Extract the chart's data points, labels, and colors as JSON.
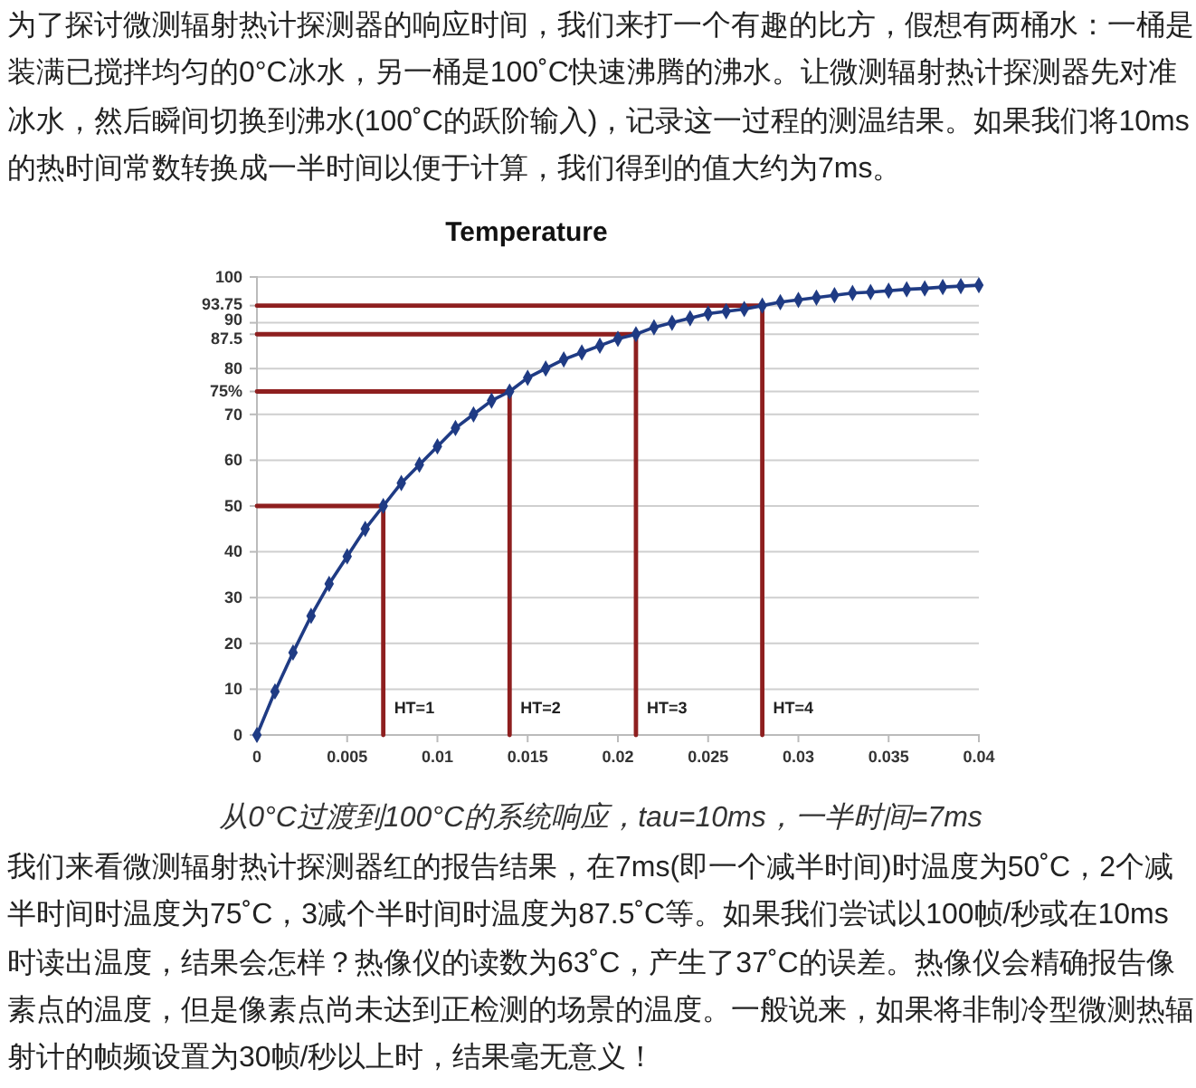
{
  "chart_data": {
    "type": "line",
    "title": "Temperature",
    "x": [
      0,
      0.001,
      0.002,
      0.003,
      0.004,
      0.005,
      0.006,
      0.007,
      0.008,
      0.009,
      0.01,
      0.011,
      0.012,
      0.013,
      0.014,
      0.015,
      0.016,
      0.017,
      0.018,
      0.019,
      0.02,
      0.021,
      0.022,
      0.023,
      0.024,
      0.025,
      0.026,
      0.027,
      0.028,
      0.029,
      0.03,
      0.031,
      0.032,
      0.033,
      0.034,
      0.035,
      0.036,
      0.037,
      0.038,
      0.039,
      0.04
    ],
    "series": [
      {
        "color": "#8e1f1f",
        "marker": "none",
        "x": [
          0,
          0.007,
          0.007
        ],
        "values": [
          50,
          50,
          0
        ]
      },
      {
        "color": "#8e1f1f",
        "marker": "none",
        "x": [
          0,
          0.014,
          0.014
        ],
        "values": [
          75,
          75,
          0
        ]
      },
      {
        "color": "#8e1f1f",
        "marker": "none",
        "x": [
          0,
          0.021,
          0.021
        ],
        "values": [
          87.5,
          87.5,
          0
        ]
      },
      {
        "color": "#8e1f1f",
        "marker": "none",
        "x": [
          0,
          0.028,
          0.028
        ],
        "values": [
          93.75,
          93.75,
          0
        ]
      },
      {
        "color": "#1f3b84",
        "values": [
          0,
          9.5,
          18,
          26,
          33,
          39,
          45,
          50,
          55,
          59,
          63,
          67,
          70,
          73,
          75,
          78,
          80,
          82,
          83.5,
          85,
          86.5,
          87.5,
          89,
          90,
          91,
          92,
          92.5,
          93,
          93.75,
          94.5,
          95,
          95.5,
          96,
          96.5,
          96.7,
          97,
          97.3,
          97.5,
          97.8,
          98,
          98.2
        ]
      }
    ],
    "xlim": [
      0,
      0.04
    ],
    "xticks": [
      0,
      0.005,
      0.01,
      0.015,
      0.02,
      0.025,
      0.03,
      0.035,
      0.04
    ],
    "ylim": [
      0,
      100
    ],
    "yticks": [
      0,
      10,
      20,
      30,
      40,
      50,
      60,
      70,
      {
        "value": 75,
        "label": "75%"
      },
      80,
      {
        "value": 87.5,
        "label": "87.5"
      },
      90,
      {
        "value": 93.75,
        "label": "93.75"
      },
      100
    ],
    "grid": "y",
    "marker": "diamond",
    "line_style": "solid",
    "annotations": [
      "为了探讨微测辐射热计探测器的响应时间，我们来打一个有趣的比方，假想有两桶水：一桶是装满已搅拌均匀的0°C冰水，另一桶是100˚C快速沸腾的沸水。让微测辐射热计探测器先对准冰水，然后瞬间切换到沸水(100˚C的跃阶输入)，记录这一过程的测温结果。如果我们将10ms的热时间常数转换成一半时间以便于计算，我们得到的值大约为7ms。",
      {
        "text": "HT=1",
        "x": 0.007,
        "y": 6
      },
      {
        "text": "HT=2",
        "x": 0.014,
        "y": 6
      },
      {
        "text": "HT=3",
        "x": 0.021,
        "y": 6
      },
      {
        "text": "HT=4",
        "x": 0.028,
        "y": 6
      },
      "从0°C过渡到100°C的系统响应，tau=10ms，一半时间=7ms",
      "我们来看微测辐射热计探测器红的报告结果，在7ms(即一个减半时间)时温度为50˚C，2个减半时间时温度为75˚C，3减个半时间时温度为87.5˚C等。如果我们尝试以100帧/秒或在10ms时读出温度，结果会怎样？热像仪的读数为63˚C，产生了37˚C的误差。热像仪会精确报告像素点的温度，但是像素点尚未达到正检测的场景的温度。一般说来，如果将非制冷型微测热辐射计的帧频设置为30帧/秒以上时，结果毫无意义！"
    ]
  }
}
